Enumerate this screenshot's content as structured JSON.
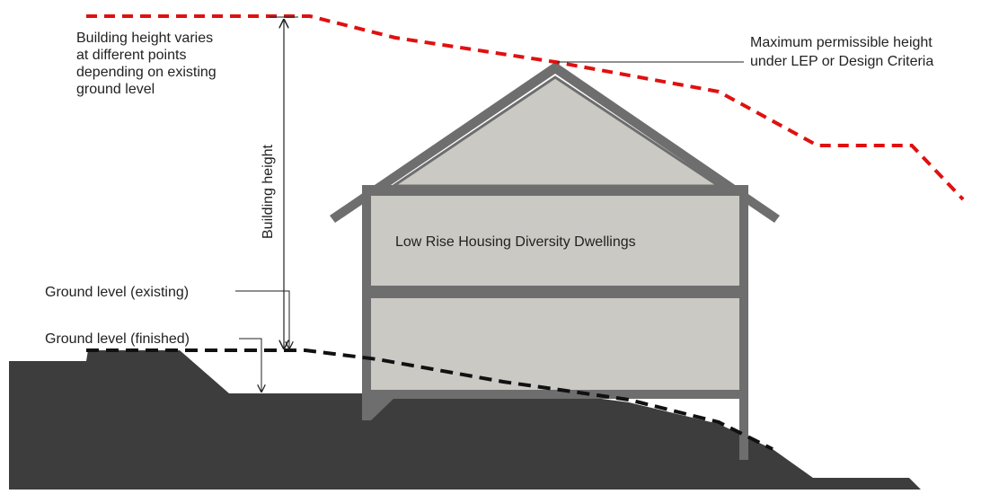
{
  "diagram": {
    "labels": {
      "building_height_note": [
        "Building height varies",
        "at different points",
        "depending on existing",
        "ground level"
      ],
      "max_height": [
        "Maximum permissible height",
        "under LEP or Design Criteria"
      ],
      "building_height": "Building height",
      "dwelling": "Low Rise Housing Diversity Dwellings",
      "ground_existing": "Ground level (existing)",
      "ground_finished": "Ground level (finished)"
    },
    "colors": {
      "ground": "#3d3d3d",
      "wall": "#6e6e6e",
      "fill": "#cbc9c4",
      "max_line": "#e01010",
      "existing_line": "#111111",
      "leader": "#222222"
    }
  }
}
